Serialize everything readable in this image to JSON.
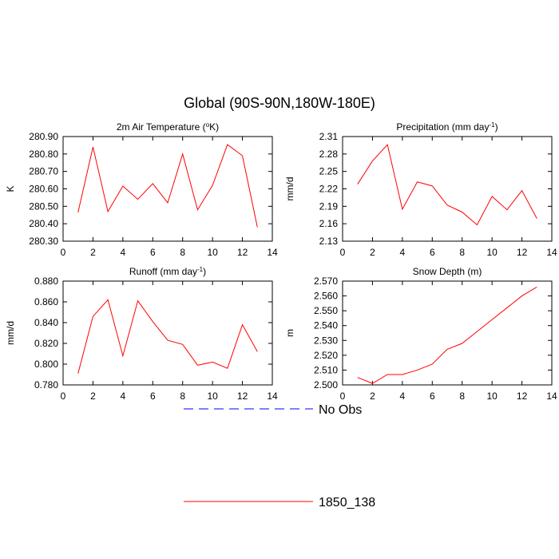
{
  "title": "Global (90S-90N,180W-180E)",
  "legend": [
    {
      "name": "No Obs",
      "color": "#0000ff",
      "dash": true
    },
    {
      "name": "1850_138",
      "color": "#ff0000",
      "dash": false
    }
  ],
  "chart_data": [
    {
      "type": "line",
      "title": [
        "2m Air Temperature (",
        "o",
        "K)"
      ],
      "ylabel": "K",
      "x": [
        1,
        2,
        3,
        4,
        5,
        6,
        7,
        8,
        9,
        10,
        11,
        12,
        13
      ],
      "values": [
        280.465,
        280.84,
        280.47,
        280.616,
        280.54,
        280.63,
        280.52,
        280.8,
        280.48,
        280.62,
        280.854,
        280.79,
        280.38
      ],
      "xlim": [
        0,
        14
      ],
      "xticks": [
        0,
        2,
        4,
        6,
        8,
        10,
        12,
        14
      ],
      "ylim": [
        280.3,
        280.9
      ],
      "yticks": [
        {
          "value": 280.3,
          "label": "280.30"
        },
        {
          "value": 280.4,
          "label": "280.40"
        },
        {
          "value": 280.5,
          "label": "280.50"
        },
        {
          "value": 280.6,
          "label": "280.60"
        },
        {
          "value": 280.7,
          "label": "280.70"
        },
        {
          "value": 280.8,
          "label": "280.80"
        },
        {
          "value": 280.9,
          "label": "280.90"
        }
      ]
    },
    {
      "type": "line",
      "title": [
        "Precipitation (mm day",
        "-1",
        ")"
      ],
      "ylabel": "mm/d",
      "x": [
        1,
        2,
        3,
        4,
        5,
        6,
        7,
        8,
        9,
        10,
        11,
        12,
        13
      ],
      "values": [
        2.228,
        2.268,
        2.296,
        2.185,
        2.232,
        2.225,
        2.192,
        2.18,
        2.158,
        2.207,
        2.184,
        2.217,
        2.169
      ],
      "xlim": [
        0,
        14
      ],
      "xticks": [
        0,
        2,
        4,
        6,
        8,
        10,
        12,
        14
      ],
      "ylim": [
        2.13,
        2.31
      ],
      "yticks": [
        2.13,
        2.16,
        2.19,
        2.22,
        2.25,
        2.28,
        2.31
      ]
    },
    {
      "type": "line",
      "title": [
        "Runoff (mm day",
        "-1",
        ")"
      ],
      "ylabel": "mm/d",
      "x": [
        1,
        2,
        3,
        4,
        5,
        6,
        7,
        8,
        9,
        10,
        11,
        12,
        13
      ],
      "values": [
        0.791,
        0.846,
        0.862,
        0.808,
        0.861,
        0.841,
        0.823,
        0.819,
        0.799,
        0.802,
        0.796,
        0.838,
        0.812
      ],
      "xlim": [
        0,
        14
      ],
      "xticks": [
        0,
        2,
        4,
        6,
        8,
        10,
        12,
        14
      ],
      "ylim": [
        0.78,
        0.88
      ],
      "yticks": [
        {
          "value": 0.78,
          "label": "0.780"
        },
        {
          "value": 0.8,
          "label": "0.800"
        },
        {
          "value": 0.82,
          "label": "0.820"
        },
        {
          "value": 0.84,
          "label": "0.840"
        },
        {
          "value": 0.86,
          "label": "0.860"
        },
        {
          "value": 0.88,
          "label": "0.880"
        }
      ]
    },
    {
      "type": "line",
      "title": [
        "Snow Depth (m)"
      ],
      "ylabel": "m",
      "x": [
        1,
        2,
        3,
        4,
        5,
        6,
        7,
        8,
        9,
        10,
        11,
        12,
        13
      ],
      "values": [
        2.505,
        2.501,
        2.507,
        2.507,
        2.51,
        2.514,
        2.524,
        2.528,
        2.536,
        2.544,
        2.552,
        2.56,
        2.566
      ],
      "xlim": [
        0,
        14
      ],
      "xticks": [
        0,
        2,
        4,
        6,
        8,
        10,
        12,
        14
      ],
      "ylim": [
        2.5,
        2.57
      ],
      "yticks": [
        {
          "value": 2.5,
          "label": "2.500"
        },
        {
          "value": 2.51,
          "label": "2.510"
        },
        {
          "value": 2.52,
          "label": "2.520"
        },
        {
          "value": 2.53,
          "label": "2.530"
        },
        {
          "value": 2.54,
          "label": "2.540"
        },
        {
          "value": 2.55,
          "label": "2.550"
        },
        {
          "value": 2.56,
          "label": "2.560"
        },
        {
          "value": 2.57,
          "label": "2.570"
        }
      ]
    }
  ]
}
